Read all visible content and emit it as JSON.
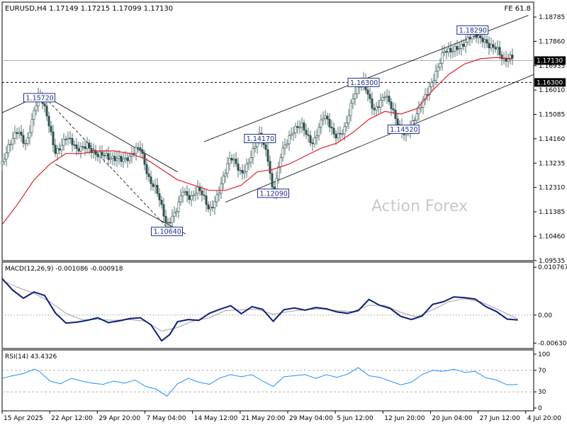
{
  "header": {
    "symbol_line": "EURUSD,H4  1.17149 1.17215 1.17099 1.17130",
    "indicator_tag": "FE 61.8",
    "watermark": "Action Forex"
  },
  "macd_panel": {
    "title": "MACD(12,26,9) -0.001086 -0.000918"
  },
  "rsi_panel": {
    "title": "RSI(14) 43.4326"
  },
  "chart_data": [
    {
      "type": "candlestick",
      "title": "EURUSD,H4  1.17149 1.17215 1.17099 1.17130",
      "x_ticks": [
        "15 Apr 2025",
        "22 Apr 12:00",
        "29 Apr 20:00",
        "7 May 04:00",
        "14 May 12:00",
        "21 May 20:00",
        "29 May 04:00",
        "5 Jun 12:00",
        "12 Jun 20:00",
        "20 Jun 04:00",
        "27 Jun 12:00",
        "4 Jul 20:00"
      ],
      "y_ticks": [
        1.18785,
        1.1786,
        1.16935,
        1.1601,
        1.15085,
        1.1416,
        1.13235,
        1.1231,
        1.11385,
        1.1046,
        1.09535
      ],
      "ylim": [
        1.0953,
        1.1935
      ],
      "current_price": 1.1713,
      "price_levels": [
        {
          "price": 1.163,
          "label": "1.16300",
          "style": "dashed"
        }
      ],
      "pivots": [
        {
          "label": "1.15720",
          "price": 1.1572,
          "time_frac": 0.07
        },
        {
          "label": "1.10640",
          "price": 1.1064,
          "time_frac": 0.31
        },
        {
          "label": "1.14170",
          "price": 1.1417,
          "time_frac": 0.485
        },
        {
          "label": "1.12090",
          "price": 1.1209,
          "time_frac": 0.51
        },
        {
          "label": "1.16300",
          "price": 1.163,
          "time_frac": 0.68
        },
        {
          "label": "1.14520",
          "price": 1.1452,
          "time_frac": 0.755
        },
        {
          "label": "1.18290",
          "price": 1.1829,
          "time_frac": 0.885
        }
      ],
      "path": [
        [
          0.0,
          1.132
        ],
        [
          0.015,
          1.138
        ],
        [
          0.03,
          1.145
        ],
        [
          0.045,
          1.141
        ],
        [
          0.06,
          1.152
        ],
        [
          0.07,
          1.1572
        ],
        [
          0.085,
          1.149
        ],
        [
          0.1,
          1.138
        ],
        [
          0.12,
          1.142
        ],
        [
          0.14,
          1.136
        ],
        [
          0.16,
          1.141
        ],
        [
          0.18,
          1.135
        ],
        [
          0.2,
          1.133
        ],
        [
          0.22,
          1.136
        ],
        [
          0.24,
          1.134
        ],
        [
          0.26,
          1.137
        ],
        [
          0.275,
          1.128
        ],
        [
          0.29,
          1.124
        ],
        [
          0.31,
          1.1064
        ],
        [
          0.325,
          1.113
        ],
        [
          0.34,
          1.124
        ],
        [
          0.355,
          1.119
        ],
        [
          0.37,
          1.121
        ],
        [
          0.39,
          1.115
        ],
        [
          0.41,
          1.124
        ],
        [
          0.43,
          1.133
        ],
        [
          0.45,
          1.129
        ],
        [
          0.47,
          1.137
        ],
        [
          0.485,
          1.1417
        ],
        [
          0.5,
          1.133
        ],
        [
          0.51,
          1.1209
        ],
        [
          0.525,
          1.138
        ],
        [
          0.545,
          1.142
        ],
        [
          0.565,
          1.147
        ],
        [
          0.585,
          1.141
        ],
        [
          0.605,
          1.149
        ],
        [
          0.625,
          1.143
        ],
        [
          0.645,
          1.147
        ],
        [
          0.66,
          1.156
        ],
        [
          0.68,
          1.163
        ],
        [
          0.7,
          1.154
        ],
        [
          0.72,
          1.157
        ],
        [
          0.74,
          1.149
        ],
        [
          0.755,
          1.1452
        ],
        [
          0.77,
          1.147
        ],
        [
          0.785,
          1.151
        ],
        [
          0.8,
          1.159
        ],
        [
          0.815,
          1.168
        ],
        [
          0.83,
          1.175
        ],
        [
          0.845,
          1.173
        ],
        [
          0.86,
          1.176
        ],
        [
          0.875,
          1.181
        ],
        [
          0.885,
          1.1829
        ],
        [
          0.9,
          1.178
        ],
        [
          0.915,
          1.176
        ],
        [
          0.93,
          1.178
        ],
        [
          0.945,
          1.172
        ],
        [
          0.96,
          1.1713
        ]
      ],
      "moving_average": [
        [
          0.0,
          1.109
        ],
        [
          0.03,
          1.117
        ],
        [
          0.06,
          1.126
        ],
        [
          0.09,
          1.132
        ],
        [
          0.12,
          1.136
        ],
        [
          0.15,
          1.136
        ],
        [
          0.18,
          1.137
        ],
        [
          0.21,
          1.137
        ],
        [
          0.24,
          1.136
        ],
        [
          0.27,
          1.134
        ],
        [
          0.3,
          1.13
        ],
        [
          0.33,
          1.126
        ],
        [
          0.36,
          1.124
        ],
        [
          0.39,
          1.122
        ],
        [
          0.42,
          1.122
        ],
        [
          0.45,
          1.124
        ],
        [
          0.48,
          1.129
        ],
        [
          0.51,
          1.13
        ],
        [
          0.54,
          1.132
        ],
        [
          0.57,
          1.135
        ],
        [
          0.6,
          1.138
        ],
        [
          0.63,
          1.14
        ],
        [
          0.66,
          1.144
        ],
        [
          0.69,
          1.149
        ],
        [
          0.72,
          1.152
        ],
        [
          0.75,
          1.151
        ],
        [
          0.78,
          1.153
        ],
        [
          0.81,
          1.16
        ],
        [
          0.84,
          1.166
        ],
        [
          0.87,
          1.17
        ],
        [
          0.9,
          1.172
        ],
        [
          0.93,
          1.1725
        ],
        [
          0.96,
          1.172
        ]
      ],
      "channels": [
        {
          "from": [
            0.0,
            1.1515
          ],
          "to": [
            0.075,
            1.1585
          ]
        },
        {
          "from": [
            0.075,
            1.1585
          ],
          "to": [
            0.33,
            1.129
          ]
        },
        {
          "from": [
            0.1,
            1.132
          ],
          "to": [
            0.345,
            1.1055
          ]
        },
        {
          "from": [
            0.075,
            1.1585
          ],
          "to": [
            0.31,
            1.108
          ],
          "style": "dashed"
        },
        {
          "from": [
            0.38,
            1.1405
          ],
          "to": [
            0.99,
            1.1885
          ]
        },
        {
          "from": [
            0.42,
            1.1175
          ],
          "to": [
            1.0,
            1.166
          ]
        }
      ]
    },
    {
      "type": "line",
      "title": "MACD(12,26,9) -0.001086 -0.000918",
      "y_ticks": [
        0.010767,
        0.0,
        -0.006302
      ],
      "ylim": [
        -0.0072,
        0.0116
      ],
      "macd": [
        [
          0.0,
          0.0082
        ],
        [
          0.02,
          0.0056
        ],
        [
          0.04,
          0.0038
        ],
        [
          0.06,
          0.0052
        ],
        [
          0.08,
          0.0044
        ],
        [
          0.1,
          0.0005
        ],
        [
          0.12,
          -0.0018
        ],
        [
          0.14,
          -0.0016
        ],
        [
          0.16,
          -0.0012
        ],
        [
          0.18,
          -0.0006
        ],
        [
          0.2,
          -0.0017
        ],
        [
          0.22,
          -0.0013
        ],
        [
          0.24,
          -0.0008
        ],
        [
          0.26,
          -0.0006
        ],
        [
          0.28,
          -0.0022
        ],
        [
          0.3,
          -0.0058
        ],
        [
          0.315,
          -0.0044
        ],
        [
          0.33,
          -0.0015
        ],
        [
          0.35,
          -0.001
        ],
        [
          0.37,
          -0.0012
        ],
        [
          0.39,
          0.0004
        ],
        [
          0.41,
          0.0013
        ],
        [
          0.43,
          0.0021
        ],
        [
          0.45,
          0.0003
        ],
        [
          0.47,
          0.0019
        ],
        [
          0.49,
          0.0013
        ],
        [
          0.51,
          -0.0014
        ],
        [
          0.53,
          0.0012
        ],
        [
          0.55,
          0.0016
        ],
        [
          0.57,
          0.0011
        ],
        [
          0.59,
          0.0017
        ],
        [
          0.61,
          0.0014
        ],
        [
          0.63,
          0.0007
        ],
        [
          0.65,
          0.0004
        ],
        [
          0.67,
          0.001
        ],
        [
          0.69,
          0.0035
        ],
        [
          0.71,
          0.0022
        ],
        [
          0.73,
          0.0015
        ],
        [
          0.75,
          -0.0003
        ],
        [
          0.77,
          -0.001
        ],
        [
          0.79,
          -0.0002
        ],
        [
          0.81,
          0.0024
        ],
        [
          0.83,
          0.003
        ],
        [
          0.85,
          0.0041
        ],
        [
          0.87,
          0.0039
        ],
        [
          0.89,
          0.0036
        ],
        [
          0.91,
          0.0019
        ],
        [
          0.93,
          0.0008
        ],
        [
          0.95,
          -0.0009
        ],
        [
          0.97,
          -0.0011
        ]
      ],
      "signal": [
        [
          0.0,
          0.0078
        ],
        [
          0.03,
          0.0062
        ],
        [
          0.06,
          0.0049
        ],
        [
          0.09,
          0.003
        ],
        [
          0.12,
          0.0004
        ],
        [
          0.15,
          -0.001
        ],
        [
          0.18,
          -0.001
        ],
        [
          0.21,
          -0.0012
        ],
        [
          0.24,
          -0.001
        ],
        [
          0.27,
          -0.0014
        ],
        [
          0.3,
          -0.0036
        ],
        [
          0.33,
          -0.0028
        ],
        [
          0.36,
          -0.0013
        ],
        [
          0.39,
          -0.0006
        ],
        [
          0.42,
          0.001
        ],
        [
          0.45,
          0.0012
        ],
        [
          0.48,
          0.0013
        ],
        [
          0.51,
          0.0002
        ],
        [
          0.54,
          0.0008
        ],
        [
          0.57,
          0.0012
        ],
        [
          0.6,
          0.0014
        ],
        [
          0.63,
          0.001
        ],
        [
          0.66,
          0.0008
        ],
        [
          0.69,
          0.0022
        ],
        [
          0.72,
          0.0022
        ],
        [
          0.75,
          0.0006
        ],
        [
          0.78,
          -0.0004
        ],
        [
          0.81,
          0.0012
        ],
        [
          0.84,
          0.003
        ],
        [
          0.87,
          0.0037
        ],
        [
          0.9,
          0.003
        ],
        [
          0.93,
          0.0014
        ],
        [
          0.96,
          -0.0003
        ],
        [
          0.97,
          -0.0009
        ]
      ]
    },
    {
      "type": "line",
      "title": "RSI(14) 43.4326",
      "y_ticks": [
        100,
        70,
        30,
        0
      ],
      "ylim": [
        0,
        100
      ],
      "levels": [
        70,
        30
      ],
      "rsi": [
        [
          0.0,
          55
        ],
        [
          0.02,
          60
        ],
        [
          0.04,
          64
        ],
        [
          0.06,
          72
        ],
        [
          0.07,
          68
        ],
        [
          0.09,
          50
        ],
        [
          0.11,
          45
        ],
        [
          0.13,
          55
        ],
        [
          0.15,
          50
        ],
        [
          0.17,
          46
        ],
        [
          0.19,
          44
        ],
        [
          0.21,
          50
        ],
        [
          0.23,
          46
        ],
        [
          0.25,
          52
        ],
        [
          0.27,
          40
        ],
        [
          0.29,
          35
        ],
        [
          0.31,
          22
        ],
        [
          0.33,
          45
        ],
        [
          0.35,
          55
        ],
        [
          0.37,
          48
        ],
        [
          0.39,
          44
        ],
        [
          0.41,
          56
        ],
        [
          0.43,
          62
        ],
        [
          0.45,
          58
        ],
        [
          0.47,
          62
        ],
        [
          0.49,
          50
        ],
        [
          0.51,
          40
        ],
        [
          0.53,
          58
        ],
        [
          0.55,
          60
        ],
        [
          0.57,
          62
        ],
        [
          0.59,
          55
        ],
        [
          0.61,
          62
        ],
        [
          0.63,
          57
        ],
        [
          0.65,
          63
        ],
        [
          0.67,
          75
        ],
        [
          0.69,
          60
        ],
        [
          0.71,
          57
        ],
        [
          0.73,
          50
        ],
        [
          0.75,
          43
        ],
        [
          0.77,
          48
        ],
        [
          0.79,
          62
        ],
        [
          0.81,
          70
        ],
        [
          0.83,
          68
        ],
        [
          0.85,
          72
        ],
        [
          0.87,
          66
        ],
        [
          0.89,
          68
        ],
        [
          0.91,
          56
        ],
        [
          0.93,
          52
        ],
        [
          0.95,
          43
        ],
        [
          0.97,
          44
        ]
      ]
    }
  ]
}
